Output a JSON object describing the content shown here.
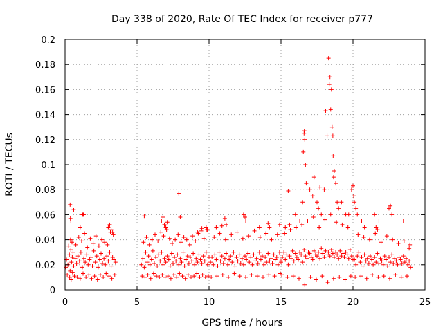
{
  "chart_data": {
    "type": "scatter",
    "title": "Day 338 of 2020, Rate Of TEC Index for receiver p777",
    "xlabel": "GPS time / hours",
    "ylabel": "ROTI / TECUs",
    "xlim": [
      0,
      25
    ],
    "ylim": [
      0,
      0.2
    ],
    "xticks": [
      0,
      5,
      10,
      15,
      20,
      25
    ],
    "yticks": [
      0,
      0.02,
      0.04,
      0.06,
      0.08,
      0.1,
      0.12,
      0.14,
      0.16,
      0.18,
      0.2
    ],
    "xtick_labels": [
      "0",
      "5",
      "10",
      "15",
      "20",
      "25"
    ],
    "ytick_labels": [
      "0",
      "0.02",
      "0.04",
      "0.06",
      "0.08",
      "0.1",
      "0.12",
      "0.14",
      "0.16",
      "0.18",
      "0.2"
    ],
    "grid": true,
    "marker": "plus",
    "color": "#ff0000",
    "series": [
      {
        "x": [
          0.05,
          0.1,
          0.2,
          0.3,
          0.35,
          0.4,
          0.45,
          0.5,
          0.55,
          0.6,
          0.7,
          0.8,
          0.9,
          1.0,
          1.1,
          1.2,
          1.3,
          1.4,
          1.5,
          1.6,
          1.7,
          1.8,
          1.9,
          2.0,
          2.1,
          2.2,
          2.3,
          2.4,
          2.5,
          2.6,
          2.7,
          2.8,
          2.9,
          3.0,
          3.1,
          3.2,
          3.3,
          3.4,
          3.5,
          0.15,
          0.25,
          0.32,
          0.38,
          0.42,
          0.48,
          0.52,
          0.65,
          0.75,
          0.85,
          0.95,
          1.05,
          1.15,
          1.25,
          1.35,
          1.45,
          1.55,
          1.65,
          1.75,
          1.85,
          1.95,
          2.05,
          2.15,
          2.25,
          2.35,
          2.45,
          2.55,
          2.65,
          2.75,
          2.85,
          2.95,
          3.05,
          3.15,
          3.25,
          3.35,
          3.45,
          0.35,
          0.37,
          0.4,
          0.6,
          1.05,
          1.2,
          1.25,
          1.3,
          3.0,
          3.1,
          3.2,
          3.3,
          5.3,
          5.4,
          5.5,
          5.6,
          5.7,
          5.8,
          5.9,
          6.0,
          6.1,
          6.2,
          6.3,
          6.4,
          6.5,
          6.6,
          6.7,
          6.8,
          6.9,
          7.0,
          7.1,
          7.2,
          7.3,
          7.4,
          7.5,
          7.6,
          7.7,
          7.8,
          7.9,
          8.0,
          8.1,
          8.2,
          8.3,
          8.4,
          8.5,
          8.6,
          8.7,
          8.8,
          8.9,
          9.0,
          9.1,
          9.2,
          9.3,
          9.4,
          9.5,
          9.6,
          9.7,
          9.8,
          9.9,
          10.0,
          5.35,
          5.45,
          5.55,
          5.65,
          5.75,
          5.85,
          5.95,
          6.05,
          6.15,
          6.25,
          6.35,
          6.45,
          6.55,
          6.65,
          6.75,
          6.85,
          6.95,
          7.05,
          7.15,
          7.25,
          7.35,
          7.45,
          7.55,
          7.65,
          7.75,
          7.85,
          7.95,
          8.05,
          8.15,
          8.25,
          8.35,
          8.45,
          8.55,
          8.65,
          8.75,
          8.85,
          8.95,
          9.05,
          9.15,
          9.25,
          9.35,
          9.45,
          9.55,
          9.65,
          9.75,
          9.85,
          9.95,
          5.5,
          6.7,
          6.8,
          6.9,
          7.0,
          7.1,
          7.9,
          8.0,
          9.2,
          9.5,
          9.8,
          9.9,
          10.1,
          10.2,
          10.3,
          10.4,
          10.5,
          10.6,
          10.7,
          10.8,
          10.9,
          11.0,
          11.1,
          11.2,
          11.3,
          11.4,
          11.5,
          11.6,
          11.7,
          11.8,
          11.9,
          12.0,
          12.1,
          12.2,
          12.3,
          12.4,
          12.5,
          12.6,
          12.7,
          12.8,
          12.9,
          13.0,
          13.1,
          13.2,
          13.3,
          13.4,
          13.5,
          13.6,
          13.7,
          13.8,
          13.9,
          14.0,
          14.1,
          14.2,
          14.3,
          14.4,
          14.5,
          14.6,
          14.7,
          14.8,
          14.9,
          15.0,
          10.15,
          10.35,
          10.55,
          10.75,
          10.95,
          11.15,
          11.35,
          11.55,
          11.75,
          11.95,
          12.15,
          12.35,
          12.55,
          12.75,
          12.95,
          13.15,
          13.35,
          13.55,
          13.75,
          13.95,
          14.15,
          14.35,
          14.55,
          14.75,
          14.95,
          10.5,
          10.9,
          11.1,
          11.2,
          12.4,
          12.5,
          12.55,
          13.5,
          14.1,
          14.2,
          14.9,
          15.0,
          15.1,
          15.2,
          15.3,
          15.4,
          15.5,
          15.6,
          15.7,
          15.8,
          15.9,
          16.0,
          16.1,
          16.2,
          16.3,
          16.4,
          16.5,
          16.6,
          16.7,
          16.8,
          16.9,
          17.0,
          17.1,
          17.2,
          17.3,
          17.4,
          17.5,
          17.6,
          17.7,
          17.8,
          17.9,
          18.0,
          18.1,
          18.2,
          18.3,
          18.4,
          18.5,
          18.6,
          18.7,
          18.8,
          18.9,
          19.0,
          19.1,
          19.2,
          19.3,
          19.4,
          19.5,
          19.6,
          19.7,
          19.8,
          19.9,
          20.0,
          15.05,
          15.25,
          15.45,
          15.65,
          15.85,
          16.05,
          16.25,
          16.45,
          16.65,
          16.85,
          17.05,
          17.25,
          17.45,
          17.65,
          17.85,
          18.05,
          18.25,
          18.45,
          18.65,
          18.85,
          19.05,
          19.25,
          19.45,
          19.65,
          19.85,
          15.3,
          15.5,
          15.6,
          16.0,
          16.3,
          16.5,
          16.55,
          16.6,
          16.62,
          16.65,
          16.7,
          16.75,
          17.0,
          17.2,
          17.3,
          17.5,
          17.6,
          17.7,
          17.8,
          18.0,
          18.1,
          18.2,
          18.3,
          18.35,
          18.4,
          18.45,
          18.5,
          18.55,
          18.6,
          18.62,
          18.65,
          18.7,
          18.8,
          18.9,
          19.0,
          19.2,
          19.5,
          19.7,
          19.9,
          20.0,
          20.1,
          20.2,
          20.3,
          20.4,
          20.5,
          20.6,
          20.7,
          20.8,
          20.9,
          21.0,
          21.1,
          21.2,
          21.3,
          21.4,
          21.5,
          21.6,
          21.7,
          21.8,
          21.9,
          22.0,
          22.1,
          22.2,
          22.3,
          22.4,
          22.5,
          22.6,
          22.7,
          22.8,
          22.9,
          23.0,
          23.1,
          23.2,
          23.3,
          23.4,
          23.5,
          23.6,
          23.7,
          23.8,
          23.9,
          24.0,
          20.15,
          20.35,
          20.55,
          20.75,
          20.95,
          21.15,
          21.35,
          21.55,
          21.75,
          21.95,
          22.15,
          22.35,
          22.55,
          22.75,
          22.95,
          23.15,
          23.35,
          23.55,
          23.75,
          23.95,
          20.05,
          20.1,
          20.2,
          20.3,
          20.6,
          20.8,
          21.5,
          21.6,
          21.7,
          21.8,
          22.5,
          22.6,
          22.7,
          23.5,
          23.9
        ],
        "y": [
          0.018,
          0.024,
          0.02,
          0.028,
          0.015,
          0.032,
          0.022,
          0.026,
          0.03,
          0.019,
          0.025,
          0.021,
          0.027,
          0.023,
          0.03,
          0.018,
          0.025,
          0.022,
          0.028,
          0.02,
          0.024,
          0.026,
          0.019,
          0.031,
          0.022,
          0.027,
          0.018,
          0.024,
          0.029,
          0.021,
          0.025,
          0.02,
          0.027,
          0.023,
          0.03,
          0.019,
          0.026,
          0.024,
          0.022,
          0.012,
          0.035,
          0.01,
          0.04,
          0.008,
          0.038,
          0.014,
          0.011,
          0.036,
          0.01,
          0.042,
          0.009,
          0.039,
          0.013,
          0.045,
          0.01,
          0.034,
          0.012,
          0.041,
          0.009,
          0.037,
          0.011,
          0.043,
          0.008,
          0.035,
          0.012,
          0.04,
          0.01,
          0.038,
          0.013,
          0.036,
          0.011,
          0.046,
          0.009,
          0.044,
          0.012,
          0.068,
          0.057,
          0.055,
          0.064,
          0.05,
          0.06,
          0.06,
          0.06,
          0.05,
          0.052,
          0.048,
          0.046,
          0.02,
          0.025,
          0.018,
          0.03,
          0.022,
          0.027,
          0.02,
          0.024,
          0.031,
          0.021,
          0.026,
          0.019,
          0.028,
          0.023,
          0.03,
          0.02,
          0.025,
          0.022,
          0.027,
          0.024,
          0.019,
          0.029,
          0.021,
          0.026,
          0.023,
          0.028,
          0.02,
          0.025,
          0.022,
          0.03,
          0.019,
          0.024,
          0.027,
          0.021,
          0.026,
          0.023,
          0.029,
          0.02,
          0.025,
          0.022,
          0.028,
          0.024,
          0.021,
          0.027,
          0.023,
          0.03,
          0.02,
          0.026,
          0.011,
          0.038,
          0.01,
          0.042,
          0.012,
          0.036,
          0.009,
          0.04,
          0.013,
          0.044,
          0.011,
          0.039,
          0.01,
          0.046,
          0.012,
          0.043,
          0.01,
          0.048,
          0.011,
          0.041,
          0.009,
          0.037,
          0.012,
          0.04,
          0.01,
          0.044,
          0.013,
          0.038,
          0.011,
          0.042,
          0.009,
          0.04,
          0.012,
          0.036,
          0.01,
          0.043,
          0.011,
          0.039,
          0.013,
          0.045,
          0.01,
          0.047,
          0.012,
          0.041,
          0.01,
          0.048,
          0.011,
          0.059,
          0.055,
          0.058,
          0.052,
          0.05,
          0.054,
          0.077,
          0.058,
          0.046,
          0.049,
          0.05,
          0.048,
          0.022,
          0.026,
          0.02,
          0.028,
          0.024,
          0.019,
          0.03,
          0.023,
          0.027,
          0.021,
          0.025,
          0.029,
          0.02,
          0.024,
          0.027,
          0.022,
          0.03,
          0.019,
          0.026,
          0.023,
          0.028,
          0.021,
          0.025,
          0.02,
          0.027,
          0.024,
          0.029,
          0.022,
          0.026,
          0.02,
          0.028,
          0.023,
          0.025,
          0.021,
          0.03,
          0.024,
          0.027,
          0.02,
          0.026,
          0.022,
          0.029,
          0.023,
          0.025,
          0.021,
          0.028,
          0.024,
          0.026,
          0.02,
          0.03,
          0.023,
          0.01,
          0.042,
          0.011,
          0.045,
          0.012,
          0.04,
          0.01,
          0.044,
          0.013,
          0.046,
          0.011,
          0.041,
          0.01,
          0.043,
          0.012,
          0.047,
          0.011,
          0.042,
          0.01,
          0.045,
          0.012,
          0.04,
          0.011,
          0.044,
          0.013,
          0.05,
          0.051,
          0.057,
          0.052,
          0.06,
          0.058,
          0.055,
          0.05,
          0.053,
          0.05,
          0.052,
          0.022,
          0.026,
          0.03,
          0.024,
          0.028,
          0.02,
          0.027,
          0.025,
          0.031,
          0.023,
          0.029,
          0.026,
          0.024,
          0.03,
          0.028,
          0.022,
          0.032,
          0.027,
          0.025,
          0.03,
          0.029,
          0.026,
          0.024,
          0.031,
          0.028,
          0.027,
          0.03,
          0.025,
          0.033,
          0.029,
          0.026,
          0.031,
          0.028,
          0.03,
          0.027,
          0.032,
          0.029,
          0.026,
          0.03,
          0.028,
          0.025,
          0.031,
          0.027,
          0.029,
          0.026,
          0.03,
          0.028,
          0.025,
          0.032,
          0.027,
          0.024,
          0.012,
          0.045,
          0.01,
          0.048,
          0.011,
          0.05,
          0.009,
          0.052,
          0.004,
          0.055,
          0.01,
          0.058,
          0.008,
          0.05,
          0.011,
          0.056,
          0.006,
          0.06,
          0.009,
          0.054,
          0.01,
          0.052,
          0.008,
          0.05,
          0.011,
          0.05,
          0.079,
          0.052,
          0.06,
          0.055,
          0.07,
          0.11,
          0.125,
          0.127,
          0.12,
          0.1,
          0.085,
          0.08,
          0.075,
          0.09,
          0.07,
          0.065,
          0.082,
          0.06,
          0.08,
          0.143,
          0.123,
          0.185,
          0.164,
          0.17,
          0.144,
          0.16,
          0.13,
          0.123,
          0.107,
          0.09,
          0.095,
          0.085,
          0.07,
          0.065,
          0.07,
          0.06,
          0.06,
          0.08,
          0.083,
          0.024,
          0.02,
          0.027,
          0.03,
          0.022,
          0.026,
          0.019,
          0.028,
          0.023,
          0.025,
          0.021,
          0.027,
          0.024,
          0.02,
          0.026,
          0.022,
          0.029,
          0.021,
          0.025,
          0.023,
          0.02,
          0.027,
          0.024,
          0.019,
          0.026,
          0.022,
          0.028,
          0.021,
          0.025,
          0.023,
          0.02,
          0.026,
          0.024,
          0.021,
          0.027,
          0.022,
          0.025,
          0.02,
          0.023,
          0.018,
          0.01,
          0.044,
          0.011,
          0.042,
          0.009,
          0.04,
          0.012,
          0.045,
          0.01,
          0.038,
          0.011,
          0.043,
          0.009,
          0.04,
          0.012,
          0.037,
          0.01,
          0.039,
          0.011,
          0.036,
          0.075,
          0.07,
          0.065,
          0.06,
          0.055,
          0.05,
          0.06,
          0.05,
          0.048,
          0.055,
          0.065,
          0.067,
          0.06,
          0.055,
          0.033
        ]
      }
    ]
  }
}
